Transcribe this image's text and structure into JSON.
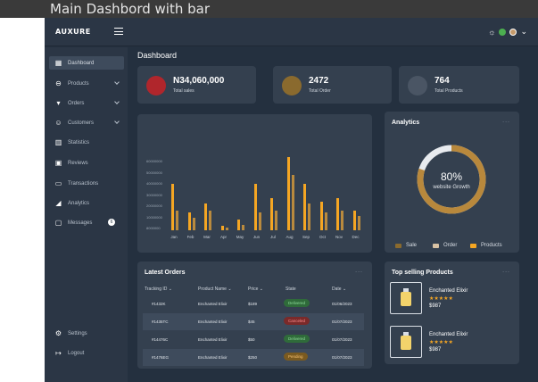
{
  "window": {
    "title": "Main Dashbord with bar"
  },
  "topbar": {
    "logo": "AUXURE",
    "user_caret": "⌄"
  },
  "sidebar": {
    "items": [
      {
        "label": "Dashboard",
        "icon": "grid-icon"
      },
      {
        "label": "Products",
        "icon": "bag-icon"
      },
      {
        "label": "Orders",
        "icon": "cart-icon"
      },
      {
        "label": "Customers",
        "icon": "users-icon"
      },
      {
        "label": "Statistics",
        "icon": "bar-chart-icon"
      },
      {
        "label": "Reviews",
        "icon": "review-icon"
      },
      {
        "label": "Transactions",
        "icon": "card-icon"
      },
      {
        "label": "Analytics",
        "icon": "analytics-icon"
      },
      {
        "label": "Messages",
        "icon": "message-icon",
        "badge": "6"
      }
    ],
    "settings": "Settings",
    "logout": "Logout"
  },
  "main": {
    "title": "Dashboard",
    "stats": [
      {
        "value": "N34,060,000",
        "label": "Total sales",
        "icon": "dollar-icon",
        "color": "#b0262c"
      },
      {
        "value": "2472",
        "label": "Total Order",
        "icon": "cart-icon",
        "color": "#8a6a2e"
      },
      {
        "value": "764",
        "label": "Total Products",
        "icon": "bag-icon",
        "color": "#4a5564"
      }
    ]
  },
  "chart_data": {
    "type": "bar",
    "categories": [
      "Jan",
      "Feb",
      "Mar",
      "Apr",
      "May",
      "Jun",
      "Jul",
      "Aug",
      "Sep",
      "Oct",
      "Nov",
      "Dec"
    ],
    "y_tick_labels": [
      "60000000",
      "50000000",
      "40000000",
      "30000000",
      "20000000",
      "10000000",
      "8000000"
    ],
    "series": [
      {
        "values": [
          52,
          20,
          30,
          5,
          12,
          52,
          36,
          82,
          52,
          32,
          36,
          22
        ],
        "color": "#f5a623"
      },
      {
        "values": [
          22,
          14,
          22,
          3,
          6,
          20,
          22,
          62,
          30,
          20,
          22,
          16
        ],
        "color": "#b98a3e"
      }
    ],
    "ylim": [
      0,
      100
    ]
  },
  "analytics": {
    "title": "Analytics",
    "more": "...",
    "percent": "80%",
    "caption": "website Growth",
    "progress": 0.8,
    "legend": [
      {
        "label": "Sale",
        "color": "#8a6a2e"
      },
      {
        "label": "Order",
        "color": "#d8c2a4"
      },
      {
        "label": "Products",
        "color": "#f5a623"
      }
    ]
  },
  "orders": {
    "title": "Latest Orders",
    "more": "...",
    "headers": [
      "Tracking ID",
      "Product Name",
      "Price",
      "State",
      "Date"
    ],
    "rows": [
      {
        "id": "#1432K",
        "name": "Enchanted Elixir",
        "price": "$189",
        "state": "Delivered",
        "date": "01/06/2023",
        "state_color": "#2f6b3a",
        "state_text": "#8fdc9b"
      },
      {
        "id": "#1435TC",
        "name": "Enchanted Elixir",
        "price": "$45",
        "state": "Canceled",
        "date": "01/07/2023",
        "state_color": "#7a2a2a",
        "state_text": "#ff8e8e"
      },
      {
        "id": "#14476C",
        "name": "Enchanted Elixir",
        "price": "$50",
        "state": "Delivered",
        "date": "01/07/2023",
        "state_color": "#2f6b3a",
        "state_text": "#8fdc9b"
      },
      {
        "id": "#1476EG",
        "name": "Enchanted Elixir",
        "price": "$250",
        "state": "Pending",
        "date": "01/07/2023",
        "state_color": "#7a5a20",
        "state_text": "#f5c070"
      }
    ]
  },
  "top_products": {
    "title": "Top selling Products",
    "more": "...",
    "items": [
      {
        "name": "Enchanted Elixir",
        "stars": "★★★★★",
        "price": "$987"
      },
      {
        "name": "Enchanted Elixir",
        "stars": "★★★★★",
        "price": "$987"
      }
    ]
  }
}
